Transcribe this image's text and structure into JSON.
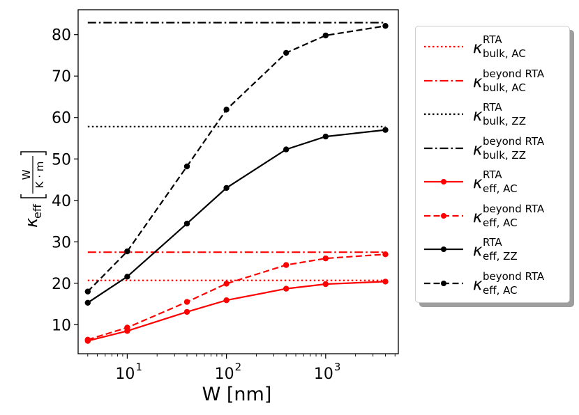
{
  "chart_data": {
    "type": "line",
    "xscale": "log",
    "xlabel": "W [nm]",
    "ylabel": "κeff [W/(K·m)]",
    "ylabel_parts": {
      "symbol": "κ",
      "subscript": "eff",
      "numerator": "W",
      "denominator": "K · m"
    },
    "xlim": [
      3.2,
      5400
    ],
    "ylim": [
      3,
      86
    ],
    "x_ticks": [
      {
        "value": 10,
        "base": "10",
        "exp": "1"
      },
      {
        "value": 100,
        "base": "10",
        "exp": "2"
      },
      {
        "value": 1000,
        "base": "10",
        "exp": "3"
      }
    ],
    "y_ticks": [
      10,
      20,
      30,
      40,
      50,
      60,
      70,
      80
    ],
    "x": [
      4,
      10,
      40,
      100,
      400,
      1000,
      4000
    ],
    "series": [
      {
        "name": "κ bulk,AC RTA",
        "symbol": "κ",
        "sup": "RTA",
        "sub": "bulk, AC",
        "color": "#ff0000",
        "style": "dotted",
        "marker": false,
        "values": [
          20.7,
          20.7,
          20.7,
          20.7,
          20.7,
          20.7,
          20.7
        ]
      },
      {
        "name": "κ bulk,AC beyond RTA",
        "symbol": "κ",
        "sup": "beyond RTA",
        "sub": "bulk, AC",
        "color": "#ff0000",
        "style": "dashdot",
        "marker": false,
        "values": [
          27.5,
          27.5,
          27.5,
          27.5,
          27.5,
          27.5,
          27.5
        ]
      },
      {
        "name": "κ bulk,ZZ RTA",
        "symbol": "κ",
        "sup": "RTA",
        "sub": "bulk, ZZ",
        "color": "#000000",
        "style": "dotted",
        "marker": false,
        "values": [
          57.8,
          57.8,
          57.8,
          57.8,
          57.8,
          57.8,
          57.8
        ]
      },
      {
        "name": "κ bulk,ZZ beyond RTA",
        "symbol": "κ",
        "sup": "beyond RTA",
        "sub": "bulk, ZZ",
        "color": "#000000",
        "style": "dashdot",
        "marker": false,
        "values": [
          82.9,
          82.9,
          82.9,
          82.9,
          82.9,
          82.9,
          82.9
        ]
      },
      {
        "name": "κ eff,AC RTA",
        "symbol": "κ",
        "sup": "RTA",
        "sub": "eff, AC",
        "color": "#ff0000",
        "style": "solid",
        "marker": true,
        "values": [
          6.1,
          8.5,
          13.1,
          15.9,
          18.7,
          19.8,
          20.4
        ]
      },
      {
        "name": "κ eff,AC beyond RTA",
        "symbol": "κ",
        "sup": "beyond RTA",
        "sub": "eff, AC",
        "color": "#ff0000",
        "style": "dashed",
        "marker": true,
        "values": [
          6.4,
          9.3,
          15.5,
          19.9,
          24.4,
          26.0,
          27.0
        ]
      },
      {
        "name": "κ eff,ZZ RTA",
        "symbol": "κ",
        "sup": "RTA",
        "sub": "eff, ZZ",
        "color": "#000000",
        "style": "solid",
        "marker": true,
        "values": [
          15.3,
          21.6,
          34.4,
          43.0,
          52.3,
          55.4,
          57.0
        ]
      },
      {
        "name": "κ eff,AC beyond RTA (black)",
        "symbol": "κ",
        "sup": "beyond RTA",
        "sub": "eff, AC",
        "color": "#000000",
        "style": "dashed",
        "marker": true,
        "values": [
          18.0,
          27.7,
          48.2,
          61.9,
          75.6,
          79.8,
          82.1
        ]
      }
    ],
    "legend_position": "outside-right"
  }
}
